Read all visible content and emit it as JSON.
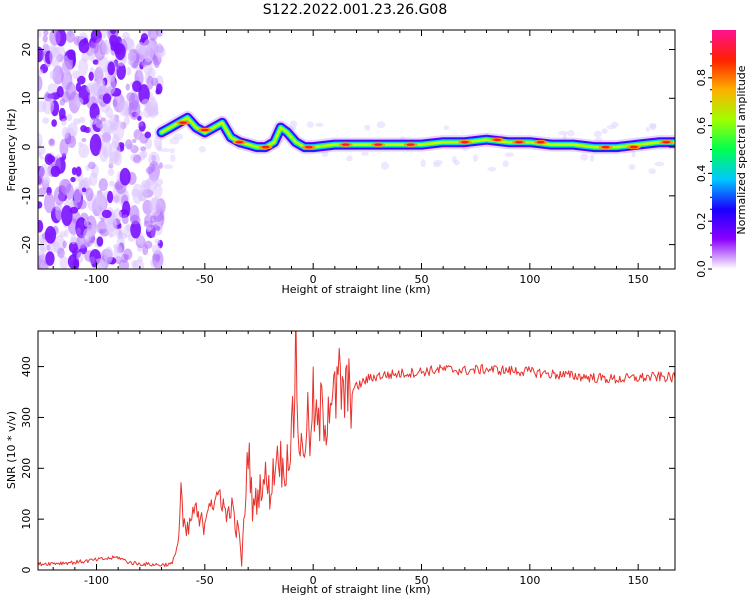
{
  "title": "S122.2022.001.23.26.G08",
  "chart_data": [
    {
      "type": "heatmap",
      "xlabel": "Height of straight line (km)",
      "ylabel": "Frequency (Hz)",
      "xlim": [
        -127,
        167
      ],
      "ylim": [
        -25,
        24
      ],
      "xticks": [
        -100,
        -50,
        0,
        50,
        100,
        150
      ],
      "yticks": [
        -20,
        -10,
        0,
        10,
        20
      ],
      "ridge": {
        "x": [
          -70,
          -66,
          -62,
          -58,
          -54,
          -50,
          -46,
          -42,
          -38,
          -34,
          -30,
          -26,
          -22,
          -18,
          -15,
          -12,
          -8,
          -4,
          0,
          10,
          30,
          50,
          60,
          70,
          80,
          90,
          100,
          110,
          120,
          130,
          140,
          150,
          160,
          167
        ],
        "freq": [
          3,
          4,
          5,
          6,
          4,
          3,
          4,
          5,
          2,
          1,
          0.5,
          0,
          0,
          1,
          4,
          3,
          1,
          0,
          0,
          0.5,
          0.5,
          0.5,
          1,
          1,
          1.5,
          1,
          1,
          0.5,
          0.5,
          0,
          0,
          0.5,
          1,
          1
        ]
      },
      "colorbar": {
        "label": "Normalized spectral amplitude",
        "range": [
          0,
          1
        ],
        "ticks": [
          0.0,
          0.2,
          0.4,
          0.6,
          0.8
        ],
        "tick_labels": [
          "0.0",
          "0.2",
          "0.4",
          "0.6",
          "0.8"
        ],
        "colors": [
          "#ffffff",
          "#8a00ff",
          "#1a00ff",
          "#00c8ff",
          "#00ff50",
          "#a0ff00",
          "#ffb000",
          "#ff2000",
          "#ff1090"
        ]
      }
    },
    {
      "type": "line",
      "xlabel": "Height of straight line (km)",
      "ylabel": "SNR (10 * v/v)",
      "xlim": [
        -127,
        167
      ],
      "ylim": [
        0,
        470
      ],
      "xticks": [
        -100,
        -50,
        0,
        50,
        100,
        150
      ],
      "yticks": [
        0,
        100,
        200,
        300,
        400
      ],
      "color": "#e8322d",
      "series": [
        {
          "name": "SNR",
          "x": [
            -127,
            -110,
            -90,
            -85,
            -80,
            -70,
            -65,
            -62,
            -61,
            -60,
            -58,
            -55,
            -52,
            -50,
            -48,
            -45,
            -43,
            -40,
            -38,
            -36,
            -34,
            -33,
            -32,
            -30,
            -28,
            -26,
            -24,
            -22,
            -20,
            -18,
            -16,
            -14,
            -12,
            -10,
            -9,
            -8,
            -7,
            -5,
            -3,
            -1,
            0,
            2,
            4,
            6,
            8,
            10,
            12,
            14,
            16,
            20,
            25,
            30,
            40,
            50,
            60,
            70,
            80,
            90,
            100,
            110,
            120,
            130,
            140,
            150,
            160,
            167
          ],
          "y": [
            12,
            15,
            25,
            15,
            12,
            10,
            12,
            60,
            175,
            80,
            70,
            120,
            90,
            95,
            150,
            120,
            160,
            100,
            130,
            90,
            60,
            20,
            80,
            250,
            120,
            140,
            170,
            180,
            150,
            200,
            240,
            190,
            220,
            260,
            300,
            470,
            280,
            220,
            300,
            250,
            330,
            270,
            320,
            300,
            360,
            330,
            370,
            340,
            345,
            360,
            375,
            382,
            386,
            390,
            395,
            392,
            395,
            392,
            390,
            385,
            382,
            378,
            375,
            378,
            380,
            378
          ]
        }
      ]
    }
  ]
}
